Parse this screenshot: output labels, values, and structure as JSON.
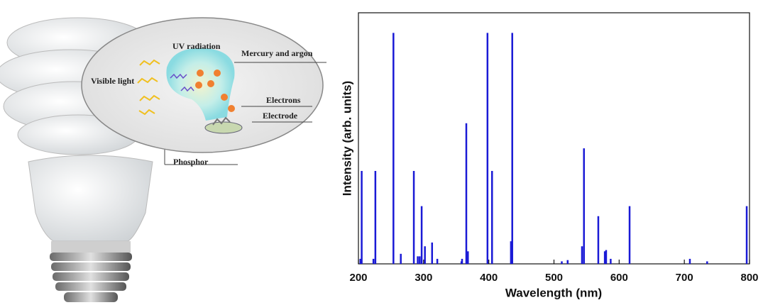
{
  "illustration": {
    "labels": [
      "UV radiation",
      "Mercury and argon",
      "Visible light",
      "Electrons",
      "Electrode",
      "Phosphor"
    ]
  },
  "chart_data": {
    "type": "stem",
    "x_label": "Wavelength (nm)",
    "y_label": "Intensity (arb. units)",
    "x": [
      203,
      205,
      223,
      226,
      253.7,
      265,
      285,
      291,
      294,
      297,
      302,
      313,
      321,
      358,
      359,
      365.5,
      368,
      398,
      405,
      434,
      436,
      512,
      521,
      543,
      546,
      568,
      578,
      580,
      587,
      616,
      708.5,
      735,
      795.7
    ],
    "values": [
      0.02,
      0.37,
      0.02,
      0.37,
      0.92,
      0.04,
      0.37,
      0.03,
      0.03,
      0.23,
      0.07,
      0.085,
      0.02,
      0.01,
      0.02,
      0.56,
      0.05,
      0.92,
      0.37,
      0.09,
      0.92,
      0.01,
      0.015,
      0.07,
      0.46,
      0.19,
      0.05,
      0.055,
      0.02,
      0.23,
      0.02,
      0.01,
      0.23
    ],
    "color": "#1a1ad6",
    "xlim": [
      200,
      800
    ],
    "xticks": [
      200,
      300,
      400,
      500,
      600,
      700,
      800
    ],
    "ylim": [
      0,
      1
    ]
  }
}
